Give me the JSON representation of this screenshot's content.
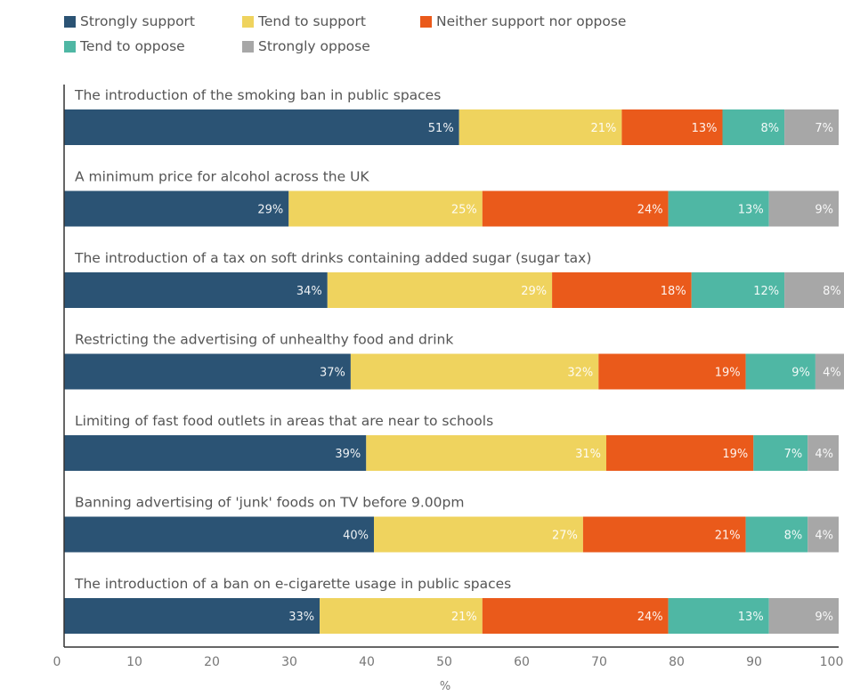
{
  "chart_data": {
    "type": "bar",
    "orientation": "horizontal",
    "stacked": true,
    "categories": [
      "The introduction of the smoking ban in public spaces",
      "A minimum price for alcohol across the UK",
      "The introduction of a tax on soft drinks containing added sugar (sugar tax)",
      "Restricting the advertising of unhealthy food and drink",
      "Limiting of fast food outlets in areas that are near to schools",
      "Banning advertising of 'junk' foods on TV before 9.00pm",
      "The introduction of a ban on e-cigarette usage in public spaces"
    ],
    "series": [
      {
        "name": "Strongly support",
        "color": "#2b5374",
        "values": [
          51,
          29,
          34,
          37,
          39,
          40,
          33
        ],
        "labels": [
          "51%",
          "29%",
          "34%",
          "37%",
          "39%",
          "40%",
          "33%"
        ]
      },
      {
        "name": "Tend to support",
        "color": "#efd35e",
        "values": [
          21,
          25,
          29,
          32,
          31,
          27,
          21
        ],
        "labels": [
          "21%",
          "25%",
          "29%",
          "32%",
          "31%",
          "27%",
          "21%"
        ]
      },
      {
        "name": "Neither support nor oppose",
        "color": "#ea5a1b",
        "values": [
          13,
          24,
          18,
          19,
          19,
          21,
          24
        ],
        "labels": [
          "13%",
          "24%",
          "18%",
          "19%",
          "19%",
          "21%",
          "24%"
        ]
      },
      {
        "name": "Tend to oppose",
        "color": "#4fb7a4",
        "values": [
          8,
          13,
          12,
          9,
          7,
          8,
          13
        ],
        "labels": [
          "8%",
          "13%",
          "12%",
          "9%",
          "7%",
          "8%",
          "13%"
        ]
      },
      {
        "name": "Strongly oppose",
        "color": "#a7a7a7",
        "values": [
          7,
          9,
          8,
          4,
          4,
          4,
          9
        ],
        "labels": [
          "7%",
          "9%",
          "8%",
          "4%",
          "4%",
          "4%",
          "9%"
        ]
      }
    ],
    "xlabel": "%",
    "xlim": [
      0,
      100
    ],
    "xticks": [
      "0",
      "10",
      "20",
      "30",
      "40",
      "50",
      "60",
      "70",
      "80",
      "90",
      "100"
    ],
    "grid": false,
    "legend_position": "top"
  }
}
